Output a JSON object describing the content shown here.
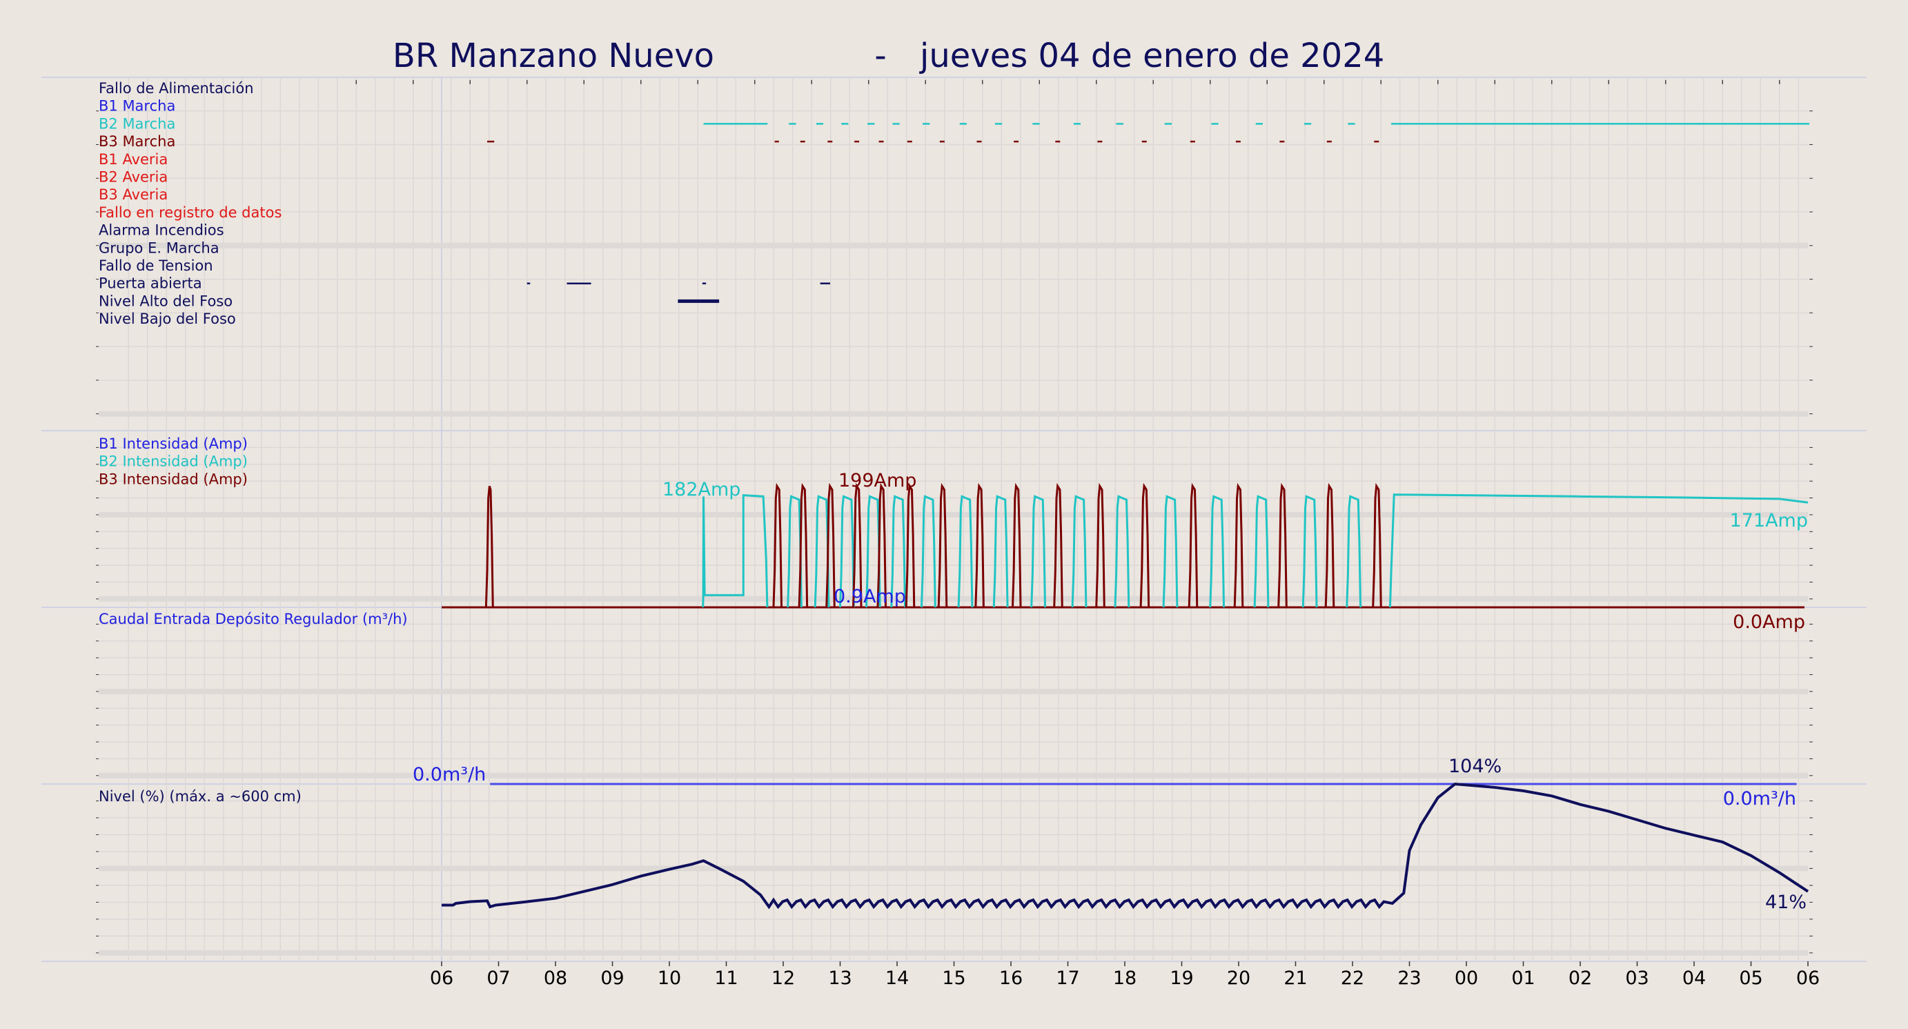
{
  "chart_data": {
    "type": "line",
    "title_station": "BR Manzano Nuevo",
    "title_sep": "-",
    "title_date": "jueves 04 de enero de 2024",
    "x_tick_labels": [
      "06",
      "07",
      "08",
      "09",
      "10",
      "11",
      "12",
      "13",
      "14",
      "15",
      "16",
      "17",
      "18",
      "19",
      "20",
      "21",
      "22",
      "23",
      "00",
      "01",
      "02",
      "03",
      "04",
      "05",
      "06"
    ],
    "x_range_hours": [
      6,
      30
    ],
    "colors": {
      "navy": "#0f0f5c",
      "blue": "#2020e0",
      "cyan": "#20c4c4",
      "darkred": "#7a0000",
      "red": "#e01818",
      "grid": "#dcd8d6",
      "band": "#ddd9d7",
      "frame": "#c8cce6"
    },
    "panels": {
      "status": {
        "labels": [
          {
            "text": "Fallo de Alimentación",
            "color": "#0f0f5c"
          },
          {
            "text": "B1 Marcha",
            "color": "#2020e0"
          },
          {
            "text": "B2 Marcha",
            "color": "#20c4c4"
          },
          {
            "text": "B3 Marcha",
            "color": "#7a0000"
          },
          {
            "text": "B1 Averia",
            "color": "#e01818"
          },
          {
            "text": "B2 Averia",
            "color": "#e01818"
          },
          {
            "text": "B3 Averia",
            "color": "#e01818"
          },
          {
            "text": "Fallo en registro de datos",
            "color": "#e01818"
          },
          {
            "text": "Alarma Incendios",
            "color": "#0f0f5c"
          },
          {
            "text": "Grupo E. Marcha",
            "color": "#0f0f5c"
          },
          {
            "text": "Fallo de Tension",
            "color": "#0f0f5c"
          },
          {
            "text": "Puerta abierta",
            "color": "#0f0f5c"
          },
          {
            "text": "Nivel Alto del Foso",
            "color": "#0f0f5c"
          },
          {
            "text": "Nivel Bajo del Foso",
            "color": "#0f0f5c"
          }
        ],
        "segments": [
          {
            "row": 2,
            "color": "#20c4c4",
            "ranges": [
              [
                10.6,
                11.7
              ],
              [
                12.1,
                12.2
              ],
              [
                12.58,
                12.68
              ],
              [
                13.02,
                13.12
              ],
              [
                13.48,
                13.58
              ],
              [
                13.92,
                14.02
              ],
              [
                14.45,
                14.55
              ],
              [
                15.1,
                15.2
              ],
              [
                15.72,
                15.82
              ],
              [
                16.38,
                16.48
              ],
              [
                17.1,
                17.2
              ],
              [
                17.85,
                17.95
              ],
              [
                18.7,
                18.8
              ],
              [
                19.52,
                19.62
              ],
              [
                20.3,
                20.4
              ],
              [
                21.15,
                21.25
              ],
              [
                21.92,
                22.02
              ],
              [
                22.68,
                30
              ]
            ]
          },
          {
            "row": 3,
            "color": "#7a0000",
            "ranges": [
              [
                6.8,
                6.9
              ],
              [
                11.85,
                11.9
              ],
              [
                12.3,
                12.36
              ],
              [
                12.78,
                12.84
              ],
              [
                13.25,
                13.31
              ],
              [
                13.68,
                13.74
              ],
              [
                14.18,
                14.24
              ],
              [
                14.75,
                14.81
              ],
              [
                15.4,
                15.46
              ],
              [
                16.05,
                16.11
              ],
              [
                16.78,
                16.84
              ],
              [
                17.52,
                17.58
              ],
              [
                18.3,
                18.36
              ],
              [
                19.15,
                19.21
              ],
              [
                19.95,
                20.01
              ],
              [
                20.72,
                20.78
              ],
              [
                21.55,
                21.61
              ],
              [
                22.38,
                22.44
              ]
            ]
          },
          {
            "row": 11,
            "color": "#0f0f5c",
            "ranges": [
              [
                7.5,
                7.53
              ],
              [
                8.2,
                8.6
              ],
              [
                10.58,
                10.62
              ],
              [
                12.65,
                12.8
              ]
            ]
          },
          {
            "row": 12,
            "color": "#0f0f5c",
            "ranges": [
              [
                10.15,
                10.85
              ]
            ]
          }
        ]
      },
      "intensity": {
        "labels": [
          {
            "text": "B1 Intensidad (Amp)",
            "color": "#2020e0"
          },
          {
            "text": "B2 Intensidad (Amp)",
            "color": "#20c4c4"
          },
          {
            "text": "B3 Intensidad (Amp)",
            "color": "#7a0000"
          }
        ],
        "y_range_amp": [
          0,
          290
        ],
        "b2_peak_hours": [
          12.1,
          12.58,
          13.02,
          13.48,
          13.92,
          14.45,
          15.1,
          15.72,
          16.38,
          17.1,
          17.85,
          18.7,
          19.52,
          20.3,
          21.15,
          21.92
        ],
        "b3_peak_hours": [
          11.85,
          12.3,
          12.78,
          13.25,
          13.68,
          14.18,
          14.75,
          15.4,
          16.05,
          16.78,
          17.52,
          18.3,
          19.15,
          19.95,
          20.72,
          21.55,
          22.38
        ],
        "b2_first_run": [
          10.6,
          11.7
        ],
        "b2_last_run": [
          22.68,
          30
        ],
        "b3_first_run": [
          6.8,
          6.9
        ],
        "annotations": [
          {
            "text": "182Amp",
            "color": "#20c4c4"
          },
          {
            "text": "199Amp",
            "color": "#7a0000"
          },
          {
            "text": "0.9Amp",
            "color": "#2020e0"
          },
          {
            "text": "171Amp",
            "color": "#20c4c4"
          },
          {
            "text": "0.0Amp",
            "color": "#7a0000"
          }
        ]
      },
      "flow": {
        "label": "Caudal Entrada Depósito Regulador (m³/h)",
        "value": 0.0,
        "annotations": [
          {
            "text": "0.0m³/h",
            "color": "#2020e0"
          },
          {
            "text": "0.0m³/h",
            "color": "#2020e0"
          }
        ]
      },
      "level": {
        "label": "Nivel (%) (máx. a ~600 cm)",
        "y_range_pct": [
          0,
          104
        ],
        "points": [
          [
            6.0,
            33
          ],
          [
            6.2,
            33
          ],
          [
            6.25,
            34
          ],
          [
            6.5,
            35
          ],
          [
            6.8,
            35.5
          ],
          [
            6.85,
            32
          ],
          [
            6.95,
            33
          ],
          [
            7.5,
            35
          ],
          [
            8.0,
            37
          ],
          [
            8.5,
            41
          ],
          [
            9.0,
            45
          ],
          [
            9.5,
            50
          ],
          [
            10.0,
            54
          ],
          [
            10.4,
            57
          ],
          [
            10.6,
            59
          ],
          [
            10.9,
            54
          ],
          [
            11.3,
            47
          ],
          [
            11.6,
            39
          ],
          [
            11.75,
            32
          ]
        ],
        "plateau_start": [
          22.7,
          34
        ],
        "rise": [
          [
            22.7,
            34
          ],
          [
            22.9,
            40
          ],
          [
            23.0,
            65
          ],
          [
            23.2,
            80
          ],
          [
            23.5,
            96
          ],
          [
            23.8,
            104
          ],
          [
            24.5,
            102
          ],
          [
            25.0,
            100
          ],
          [
            25.5,
            97
          ],
          [
            26.0,
            92
          ],
          [
            26.5,
            88
          ],
          [
            27.0,
            83
          ],
          [
            27.5,
            78
          ],
          [
            28.0,
            74
          ],
          [
            28.5,
            70
          ],
          [
            29.0,
            62
          ],
          [
            29.5,
            52
          ],
          [
            30.0,
            41
          ]
        ],
        "annotations": [
          {
            "text": "104%",
            "color": "#0f0f5c"
          },
          {
            "text": "41%",
            "color": "#0f0f5c"
          }
        ]
      }
    }
  }
}
